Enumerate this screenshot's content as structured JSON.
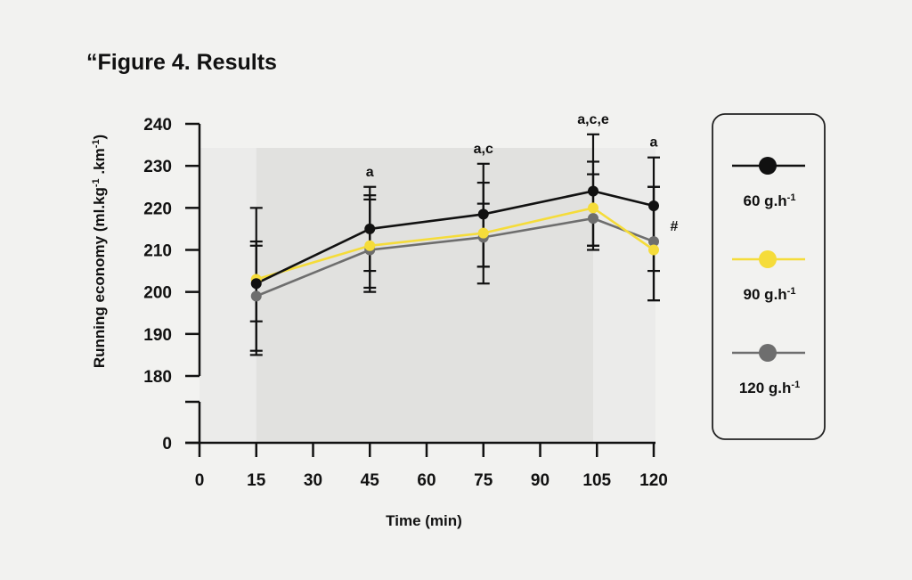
{
  "title": "“Figure 4. Results",
  "chart_data": {
    "type": "line",
    "title": "“Figure 4. Results",
    "xlabel": "Time (min)",
    "ylabel_main": "Running economy (ml.kg",
    "ylabel_sup1": "-1",
    "ylabel_mid": " .km",
    "ylabel_sup2": "-1",
    "ylabel_end": ")",
    "x_ticks": [
      "0",
      "15",
      "30",
      "45",
      "60",
      "75",
      "90",
      "105",
      "120"
    ],
    "x_tick_values": [
      0,
      15,
      30,
      45,
      60,
      75,
      90,
      105,
      120
    ],
    "y_ticks": [
      "240",
      "230",
      "220",
      "210",
      "200",
      "190",
      "180",
      "0"
    ],
    "y_tick_values": [
      240,
      230,
      220,
      210,
      200,
      190,
      180,
      0
    ],
    "axis_break": [
      0,
      180
    ],
    "shaded_region_x": [
      15,
      104
    ],
    "series": [
      {
        "name": "60 g.h",
        "sup": "-1",
        "color": "#111111",
        "x": [
          15,
          45,
          75,
          104,
          120
        ],
        "values": [
          202,
          215,
          218.5,
          224,
          220.5
        ],
        "err_low": [
          185,
          200,
          206,
          211,
          198
        ],
        "err_high": [
          220,
          225,
          230.5,
          237.5,
          232
        ]
      },
      {
        "name": "90 g.h",
        "sup": "-1",
        "color": "#f5dc3a",
        "x": [
          15,
          45,
          75,
          104,
          120
        ],
        "values": [
          203,
          211,
          214,
          220,
          210
        ],
        "err_low": [
          186,
          201,
          206,
          211,
          198
        ],
        "err_high": [
          212,
          222,
          221,
          231,
          225
        ]
      },
      {
        "name": "120 g.h",
        "sup": "-1",
        "color": "#6e6e6e",
        "x": [
          15,
          45,
          75,
          104,
          120
        ],
        "values": [
          199,
          210,
          213,
          217.5,
          212
        ],
        "err_low": [
          193,
          205,
          202,
          210,
          205
        ],
        "err_high": [
          211,
          223,
          226,
          228,
          225
        ]
      }
    ],
    "annotations": [
      {
        "x": 45,
        "text": "a"
      },
      {
        "x": 75,
        "text": "a,c"
      },
      {
        "x": 104,
        "text": "a,c,e"
      },
      {
        "x": 120,
        "text": "a"
      }
    ],
    "hash_annotation": "#",
    "legend_position": "right"
  }
}
